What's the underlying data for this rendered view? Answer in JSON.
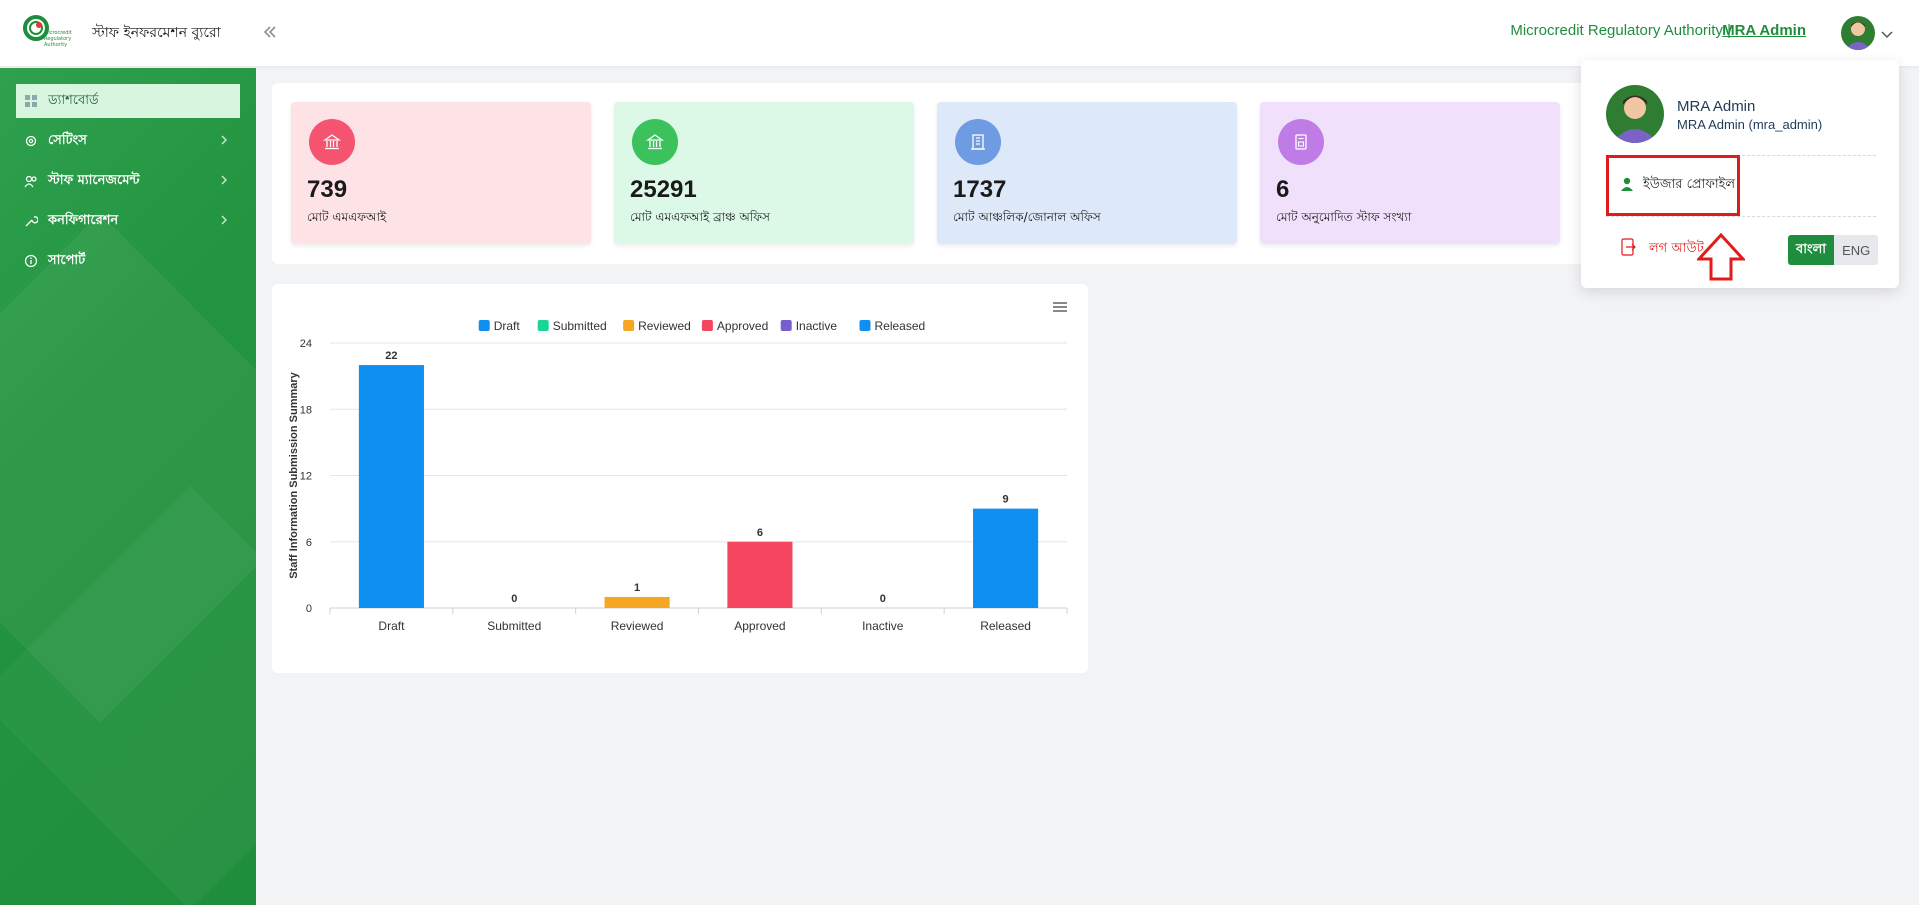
{
  "header": {
    "app_title": "স্টাফ ইনফরমেশন ব্যুরো",
    "org_name": "Microcredit Regulatory Authority |",
    "admin_link": "MRA Admin",
    "logo_text": "Microcredit Regulatory Authority"
  },
  "sidebar": {
    "items": [
      {
        "label": "ড্যাশবোর্ড",
        "icon": "grid-icon",
        "active": true
      },
      {
        "label": "সেটিংস",
        "icon": "gear-icon"
      },
      {
        "label": "স্টাফ ম্যানেজমেন্ট",
        "icon": "users-icon"
      },
      {
        "label": "কনফিগারেশন",
        "icon": "wrench-icon"
      },
      {
        "label": "সাপোর্ট",
        "icon": "info-icon"
      }
    ]
  },
  "stats": [
    {
      "value": "739",
      "label": "মোট এমএফআই",
      "bg": "#fde2e6",
      "icon_bg": "#f4546f",
      "icon": "bank-icon"
    },
    {
      "value": "25291",
      "label": "মোট এমএফআই ব্রাঞ্চ অফিস",
      "bg": "#dcf8e6",
      "icon_bg": "#3cc25c",
      "icon": "bank-icon"
    },
    {
      "value": "1737",
      "label": "মোট আঞ্চলিক/জোনাল অফিস",
      "bg": "#dde8f8",
      "icon_bg": "#6e9be2",
      "icon": "building-icon"
    },
    {
      "value": "6",
      "label": "মোট অনুমোদিত স্টাফ সংখ্যা",
      "bg": "#f0e0fb",
      "icon_bg": "#c07ce6",
      "icon": "document-icon"
    }
  ],
  "chart_data": {
    "type": "bar",
    "categories": [
      "Draft",
      "Submitted",
      "Reviewed",
      "Approved",
      "Inactive",
      "Released"
    ],
    "values": [
      22,
      0,
      1,
      6,
      0,
      9
    ],
    "colors": [
      "#0f8ff1",
      "#1ad598",
      "#f5a623",
      "#f4465f",
      "#775dd0",
      "#0f8ff1"
    ],
    "legend": [
      "Draft",
      "Submitted",
      "Reviewed",
      "Approved",
      "Inactive",
      "Released"
    ],
    "ylabel": "Staff Information Submission Summary",
    "yticks": [
      0,
      6,
      12,
      18,
      24
    ],
    "ylim": [
      0,
      24
    ],
    "grid": true,
    "legend_position": "top"
  },
  "dropdown": {
    "name": "MRA Admin",
    "username": "MRA Admin (mra_admin)",
    "profile_label": "ইউজার প্রোফাইল",
    "logout_label": "লগ আউট",
    "lang_bn": "বাংলা",
    "lang_en": "ENG"
  }
}
